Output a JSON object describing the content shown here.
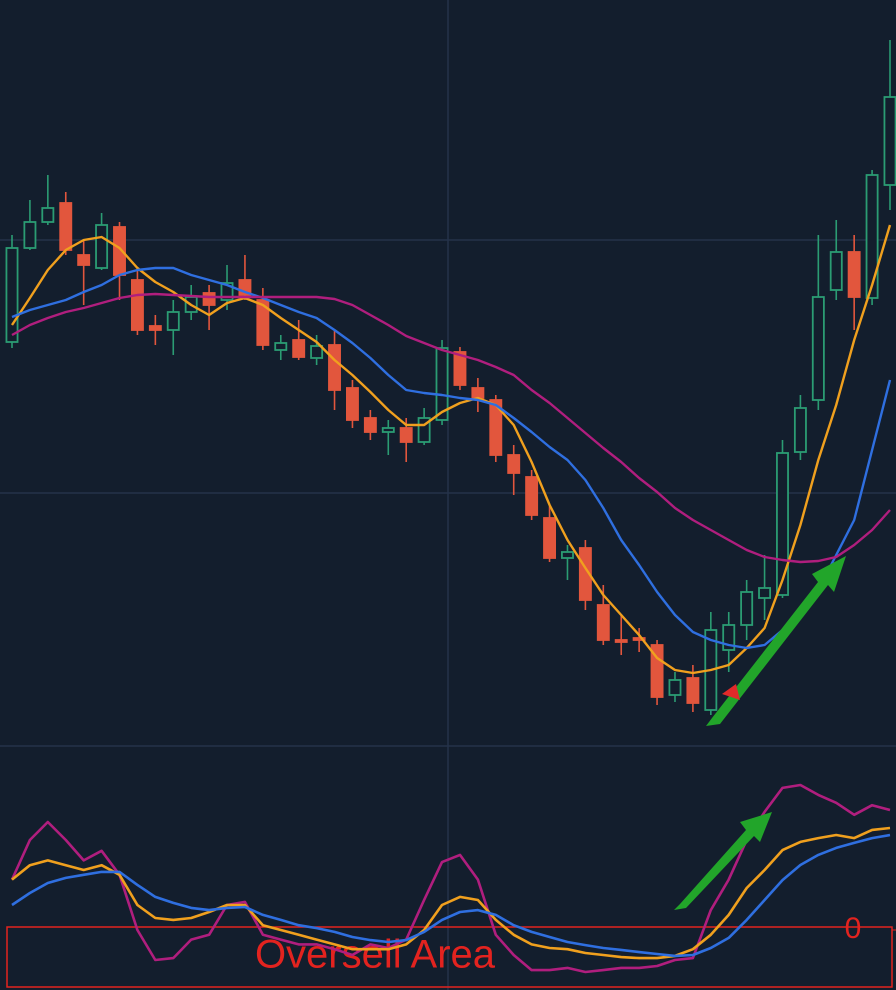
{
  "chart_data": [
    {
      "type": "candlestick",
      "open": [
        403,
        497,
        523,
        542,
        490,
        477,
        518,
        465,
        419,
        415,
        433,
        452,
        445,
        465,
        445,
        395,
        405,
        387,
        400,
        357,
        327,
        313,
        317,
        303,
        325,
        393,
        357,
        345,
        290,
        268,
        227,
        187,
        197,
        140,
        105,
        107,
        100,
        50,
        67,
        35,
        95,
        120,
        147,
        150,
        293,
        345,
        455,
        493,
        447,
        560
      ],
      "high": [
        510,
        545,
        570,
        553,
        505,
        532,
        523,
        475,
        430,
        445,
        460,
        460,
        480,
        490,
        457,
        410,
        425,
        410,
        415,
        365,
        335,
        325,
        327,
        337,
        405,
        398,
        367,
        350,
        300,
        275,
        240,
        200,
        205,
        160,
        130,
        117,
        105,
        73,
        80,
        133,
        133,
        165,
        190,
        305,
        350,
        510,
        525,
        510,
        575,
        705
      ],
      "low": [
        397,
        495,
        520,
        490,
        440,
        475,
        445,
        410,
        400,
        390,
        425,
        415,
        435,
        445,
        395,
        385,
        385,
        380,
        335,
        317,
        305,
        290,
        283,
        300,
        320,
        355,
        333,
        283,
        250,
        225,
        183,
        165,
        135,
        100,
        90,
        93,
        40,
        43,
        33,
        30,
        73,
        105,
        125,
        147,
        285,
        335,
        445,
        415,
        440,
        535
      ],
      "close": [
        497,
        523,
        537,
        495,
        480,
        520,
        470,
        415,
        415,
        433,
        448,
        440,
        462,
        450,
        400,
        402,
        388,
        399,
        355,
        325,
        313,
        317,
        303,
        327,
        397,
        360,
        347,
        290,
        272,
        230,
        187,
        193,
        145,
        105,
        103,
        105,
        48,
        65,
        42,
        115,
        120,
        153,
        157,
        292,
        337,
        448,
        493,
        448,
        570,
        648
      ],
      "up_color": "#2b9c73",
      "down_color": "#e2563d",
      "series": [
        {
          "color": "#f0a01e",
          "values": [
            420,
            447,
            475,
            495,
            505,
            508,
            497,
            477,
            463,
            453,
            440,
            430,
            442,
            447,
            440,
            427,
            415,
            403,
            385,
            370,
            353,
            335,
            320,
            320,
            333,
            342,
            347,
            340,
            320,
            283,
            240,
            205,
            177,
            150,
            130,
            110,
            87,
            75,
            72,
            75,
            80,
            97,
            117,
            165,
            220,
            285,
            340,
            405,
            460,
            520
          ]
        },
        {
          "color": "#2f6fe0",
          "values": [
            428,
            435,
            440,
            445,
            453,
            460,
            470,
            475,
            477,
            477,
            470,
            465,
            460,
            453,
            447,
            440,
            433,
            427,
            415,
            402,
            387,
            370,
            355,
            352,
            350,
            347,
            345,
            340,
            327,
            313,
            298,
            285,
            265,
            237,
            205,
            180,
            153,
            130,
            113,
            105,
            100,
            97,
            100,
            115,
            133,
            155,
            190,
            225,
            295,
            365
          ]
        },
        {
          "color": "#b01e7e",
          "values": [
            410,
            420,
            427,
            433,
            437,
            442,
            447,
            450,
            451,
            450,
            449,
            448,
            448,
            448,
            448,
            448,
            448,
            448,
            446,
            440,
            430,
            420,
            409,
            402,
            395,
            390,
            385,
            378,
            370,
            355,
            342,
            327,
            312,
            297,
            283,
            267,
            253,
            237,
            225,
            215,
            205,
            195,
            188,
            185,
            183,
            184,
            188,
            200,
            215,
            235
          ]
        }
      ],
      "ylim": [
        0,
        745
      ]
    },
    {
      "type": "line",
      "series": [
        {
          "color": "#b01e7e",
          "values": [
            21,
            37.5,
            45,
            37.5,
            29,
            33,
            23,
            0,
            -12.5,
            -11.7,
            -4,
            -2,
            10.4,
            11.7,
            -2,
            -4,
            -6,
            -6,
            -8,
            -10.4,
            -6,
            -7.5,
            -4,
            12.5,
            28.3,
            31.3,
            21,
            -2,
            -10.4,
            -16.7,
            -16.7,
            -15.8,
            -17.5,
            -16.7,
            -15.8,
            -15.8,
            -15,
            -12.5,
            -11.7,
            8.3,
            21,
            37.5,
            49.2,
            59.2,
            60.4,
            56.3,
            53,
            48,
            52,
            50
          ]
        },
        {
          "color": "#f0a01e",
          "values": [
            21,
            27,
            29,
            27,
            25,
            27,
            23,
            10.4,
            5,
            4.2,
            5,
            7.5,
            10.4,
            10.4,
            2,
            0,
            -2,
            -4,
            -6,
            -8,
            -8,
            -8,
            -6,
            0,
            10.4,
            13.8,
            12.5,
            4.2,
            -2,
            -6,
            -7.5,
            -8,
            -9.6,
            -10.4,
            -11.3,
            -11.7,
            -11.7,
            -10.8,
            -8,
            -2,
            6.3,
            17.5,
            25,
            33.3,
            36.7,
            38.3,
            39.6,
            38.3,
            41.7,
            42.5
          ]
        },
        {
          "color": "#2f6fe0",
          "values": [
            10.4,
            15.4,
            19.6,
            21.7,
            23,
            24.2,
            24.2,
            18.8,
            13.8,
            11.3,
            9.2,
            8.3,
            9.2,
            9.6,
            6.3,
            4.2,
            2,
            0.8,
            -0.8,
            -2.9,
            -4.2,
            -5,
            -4.2,
            -0.8,
            4.2,
            7.5,
            8.3,
            6.3,
            2,
            -0.8,
            -2.9,
            -5,
            -6.3,
            -7.5,
            -8.3,
            -9.2,
            -10,
            -10.8,
            -10.4,
            -7.5,
            -3.3,
            4.2,
            12.5,
            20.8,
            27.1,
            31.3,
            34.2,
            36.3,
            38.3,
            39.6
          ]
        }
      ],
      "ylim": [
        -25,
        75
      ],
      "yticks": [
        0
      ],
      "annotation": "Oversell Area",
      "annotation_color": "#e3231f"
    }
  ]
}
